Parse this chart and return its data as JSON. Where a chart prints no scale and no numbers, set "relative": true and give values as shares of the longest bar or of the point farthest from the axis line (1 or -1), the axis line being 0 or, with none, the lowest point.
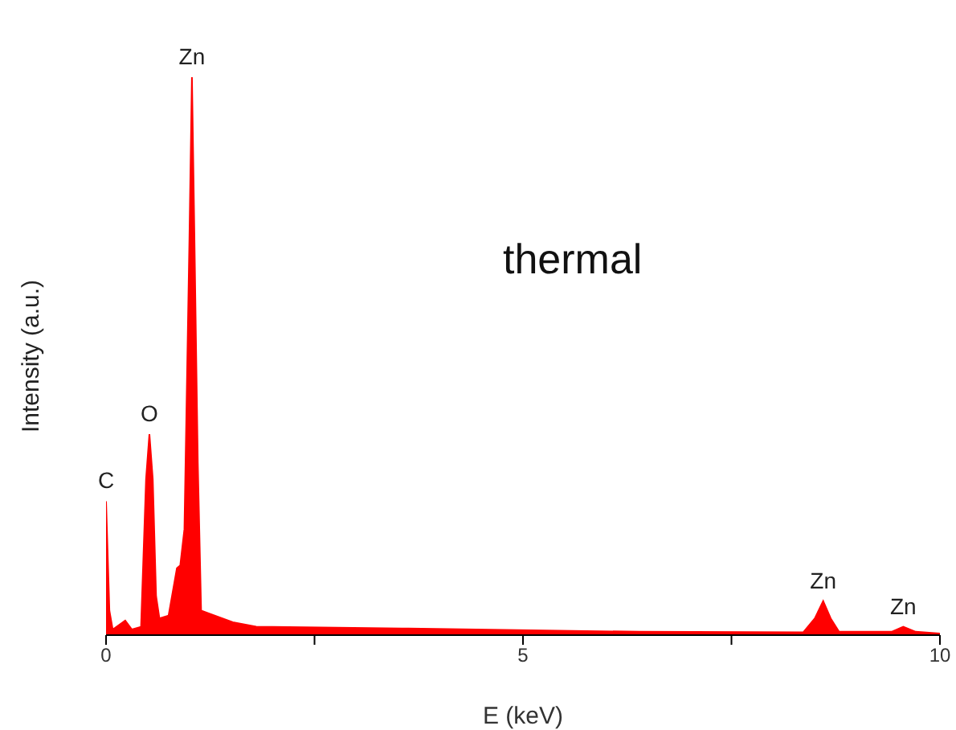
{
  "chart_data": {
    "type": "area",
    "relative": true,
    "xlabel": "E (keV)",
    "ylabel": "Intensity (a.u.)",
    "color": "#ff0000",
    "xlim": [
      0,
      10
    ],
    "xticks": [
      0,
      {
        "value": 2.5,
        "label": null
      },
      5,
      {
        "value": 7.5,
        "label": null
      },
      10
    ],
    "x": [
      0,
      0.04,
      0.08,
      0.23,
      0.31,
      0.42,
      0.48,
      0.52,
      0.56,
      0.6,
      0.64,
      0.75,
      0.85,
      0.89,
      0.94,
      1.0,
      1.03,
      1.06,
      1.1,
      1.14,
      1.52,
      1.8,
      3.55,
      6.4,
      8.36,
      8.5,
      8.6,
      8.69,
      8.79,
      9.42,
      9.56,
      9.71,
      10
    ],
    "values": [
      0.24,
      0.044,
      0.01,
      0.026,
      0.01,
      0.015,
      0.28,
      0.36,
      0.28,
      0.07,
      0.03,
      0.035,
      0.12,
      0.125,
      0.19,
      0.71,
      1.0,
      0.71,
      0.31,
      0.044,
      0.023,
      0.015,
      0.012,
      0.006,
      0.005,
      0.03,
      0.061,
      0.03,
      0.006,
      0.006,
      0.015,
      0.006,
      0.003
    ],
    "annotations": [
      {
        "text": "C",
        "x": 0,
        "y": 0.24
      },
      {
        "text": "O",
        "x": 0.52,
        "y": 0.36
      },
      {
        "text": "Zn",
        "x": 1.03,
        "y": 1.0
      },
      {
        "text": "Zn",
        "x": 8.6,
        "y": 0.061
      },
      {
        "text": "Zn",
        "x": 9.56,
        "y": 0.015
      },
      "thermal"
    ],
    "grid": false,
    "legend": false
  }
}
